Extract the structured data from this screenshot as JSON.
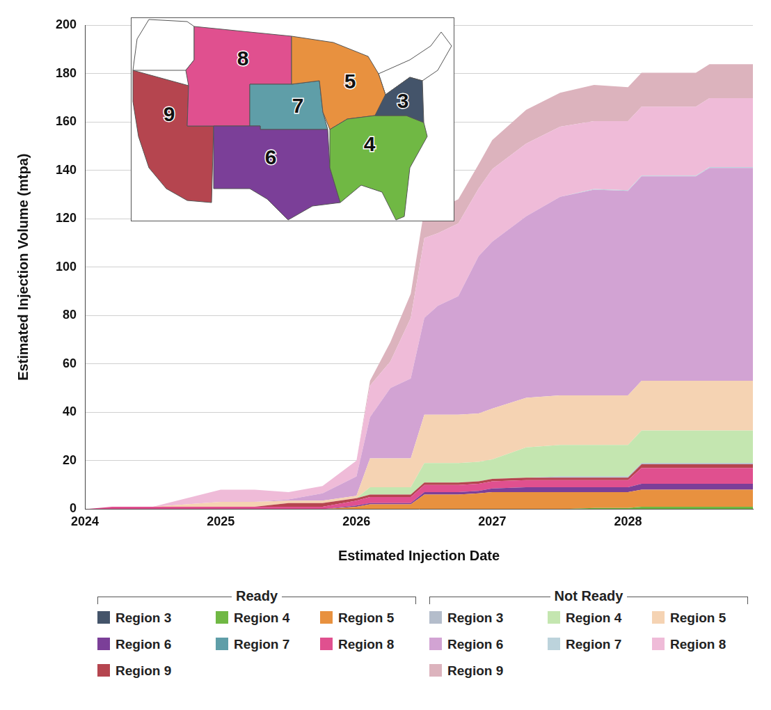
{
  "chart_data": {
    "type": "area",
    "stacked": true,
    "grid": true,
    "legend": "bottom",
    "y_label": "Estimated Injection Volume (mtpa)",
    "x_label": "Estimated Injection Date",
    "x": [
      2024,
      2024.2,
      2024.5,
      2025,
      2025.25,
      2025.5,
      2025.75,
      2026,
      2026.1,
      2026.25,
      2026.4,
      2026.5,
      2026.6,
      2026.75,
      2026.9,
      2027,
      2027.25,
      2027.5,
      2027.75,
      2028,
      2028.1,
      2028.5,
      2028.6,
      2028.92
    ],
    "xlim": [
      2024,
      2028.92
    ],
    "xticks": [
      2024,
      2025,
      2026,
      2027,
      2028
    ],
    "ylim": [
      0,
      200
    ],
    "yticks": [
      0,
      20,
      40,
      60,
      80,
      100,
      120,
      140,
      160,
      180,
      200
    ],
    "series_groups": [
      {
        "name": "Ready",
        "series": [
          {
            "name": "Region 3",
            "color": "#44546a",
            "values": [
              0,
              0,
              0,
              0,
              0,
              0,
              0,
              0,
              0,
              0,
              0,
              0,
              0,
              0,
              0,
              0,
              0,
              0,
              0,
              0,
              0,
              0,
              0,
              0
            ]
          },
          {
            "name": "Region 4",
            "color": "#70b844",
            "values": [
              0,
              0,
              0,
              0,
              0,
              0,
              0,
              0,
              0,
              0,
              0,
              0,
              0,
              0,
              0,
              0,
              0,
              0,
              0.5,
              0.5,
              1,
              1,
              1,
              1
            ]
          },
          {
            "name": "Region 5",
            "color": "#e8913f",
            "values": [
              0,
              0,
              0,
              0,
              0,
              0,
              0,
              1,
              2,
              2,
              2,
              6,
              6,
              6,
              6.5,
              7,
              7,
              7,
              6.5,
              6.5,
              7,
              7,
              7,
              7
            ]
          },
          {
            "name": "Region 6",
            "color": "#7b3f98",
            "values": [
              0,
              0,
              0,
              0,
              0,
              0,
              0,
              0.5,
              0.5,
              0.5,
              0.5,
              1,
              1,
              1,
              1,
              1.5,
              2,
              2,
              2,
              2,
              2.5,
              2.5,
              2.5,
              2.5
            ]
          },
          {
            "name": "Region 7",
            "color": "#5f9ea8",
            "values": [
              0,
              0,
              0,
              0,
              0,
              0,
              0,
              0,
              0,
              0,
              0,
              0,
              0,
              0,
              0,
              0,
              0,
              0,
              0,
              0,
              0,
              0,
              0,
              0
            ]
          },
          {
            "name": "Region 8",
            "color": "#e0508f",
            "values": [
              0,
              1,
              1,
              1,
              1,
              1,
              1,
              2,
              2.5,
              2.5,
              2.5,
              3,
              3,
              3,
              3,
              3,
              3,
              3,
              3,
              3,
              6.5,
              6.5,
              6.5,
              6.5
            ]
          },
          {
            "name": "Region 9",
            "color": "#b5454f",
            "values": [
              0,
              0,
              0,
              0,
              0,
              1.5,
              1.5,
              1,
              1,
              1,
              1,
              1,
              1,
              1,
              1,
              1,
              1,
              1,
              1,
              1,
              1.5,
              1.5,
              1.5,
              1.5
            ]
          }
        ]
      },
      {
        "name": "Not Ready",
        "series": [
          {
            "name": "Region 3",
            "color": "#b4bdcb",
            "values": [
              0,
              0,
              0,
              0,
              0,
              0,
              0,
              0,
              0,
              0,
              0,
              0,
              0,
              0,
              0,
              0,
              0,
              0.5,
              0.5,
              0.5,
              0.5,
              0.5,
              0.5,
              0.5
            ]
          },
          {
            "name": "Region 4",
            "color": "#c4e6b0",
            "values": [
              0,
              0,
              0,
              0,
              0,
              0,
              0,
              0,
              3,
              3,
              3,
              8,
              8,
              8,
              8,
              8,
              12.5,
              13,
              13,
              13,
              13.5,
              13.5,
              13.5,
              13.5
            ]
          },
          {
            "name": "Region 5",
            "color": "#f5d3b3",
            "values": [
              0,
              0,
              0,
              2,
              2,
              1,
              1,
              1,
              12,
              12,
              12,
              20,
              20,
              20,
              20,
              21,
              20.5,
              20.5,
              20.5,
              20.5,
              20.5,
              20.5,
              20.5,
              20.5
            ]
          },
          {
            "name": "Region 6",
            "color": "#d2a3d3",
            "values": [
              0,
              0,
              0,
              0,
              0,
              0.5,
              3,
              8,
              17,
              29,
              33,
              40,
              45,
              49,
              65,
              69,
              75,
              82,
              85,
              84.5,
              84.5,
              84.5,
              88,
              88
            ]
          },
          {
            "name": "Region 7",
            "color": "#bcd3dc",
            "values": [
              0,
              0,
              0,
              0,
              0,
              0,
              0,
              0,
              0,
              0,
              0,
              0,
              0,
              0,
              0,
              0,
              0,
              0,
              0.3,
              0.3,
              0.3,
              0.3,
              0.3,
              0.3
            ]
          },
          {
            "name": "Region 8",
            "color": "#efbbd8",
            "values": [
              0,
              0,
              0,
              5,
              5,
              3,
              3,
              6.5,
              13,
              11,
              25,
              33,
              30,
              30,
              28,
              30,
              30,
              29,
              28,
              28.5,
              28.5,
              28.5,
              28.5,
              28.5
            ]
          },
          {
            "name": "Region 9",
            "color": "#dcb3bd",
            "values": [
              0,
              0,
              0,
              0,
              0,
              0,
              0,
              0,
              2,
              8,
              10,
              12,
              10,
              10,
              10,
              12,
              14,
              14,
              15,
              14,
              14,
              14,
              14,
              14
            ]
          }
        ]
      }
    ],
    "inset_map": {
      "regions": [
        {
          "label": "9",
          "color": "#b5454f"
        },
        {
          "label": "8",
          "color": "#e0508f"
        },
        {
          "label": "7",
          "color": "#5f9ea8"
        },
        {
          "label": "6",
          "color": "#7b3f98"
        },
        {
          "label": "5",
          "color": "#e8913f"
        },
        {
          "label": "4",
          "color": "#70b844"
        },
        {
          "label": "3",
          "color": "#44546a"
        }
      ]
    }
  }
}
